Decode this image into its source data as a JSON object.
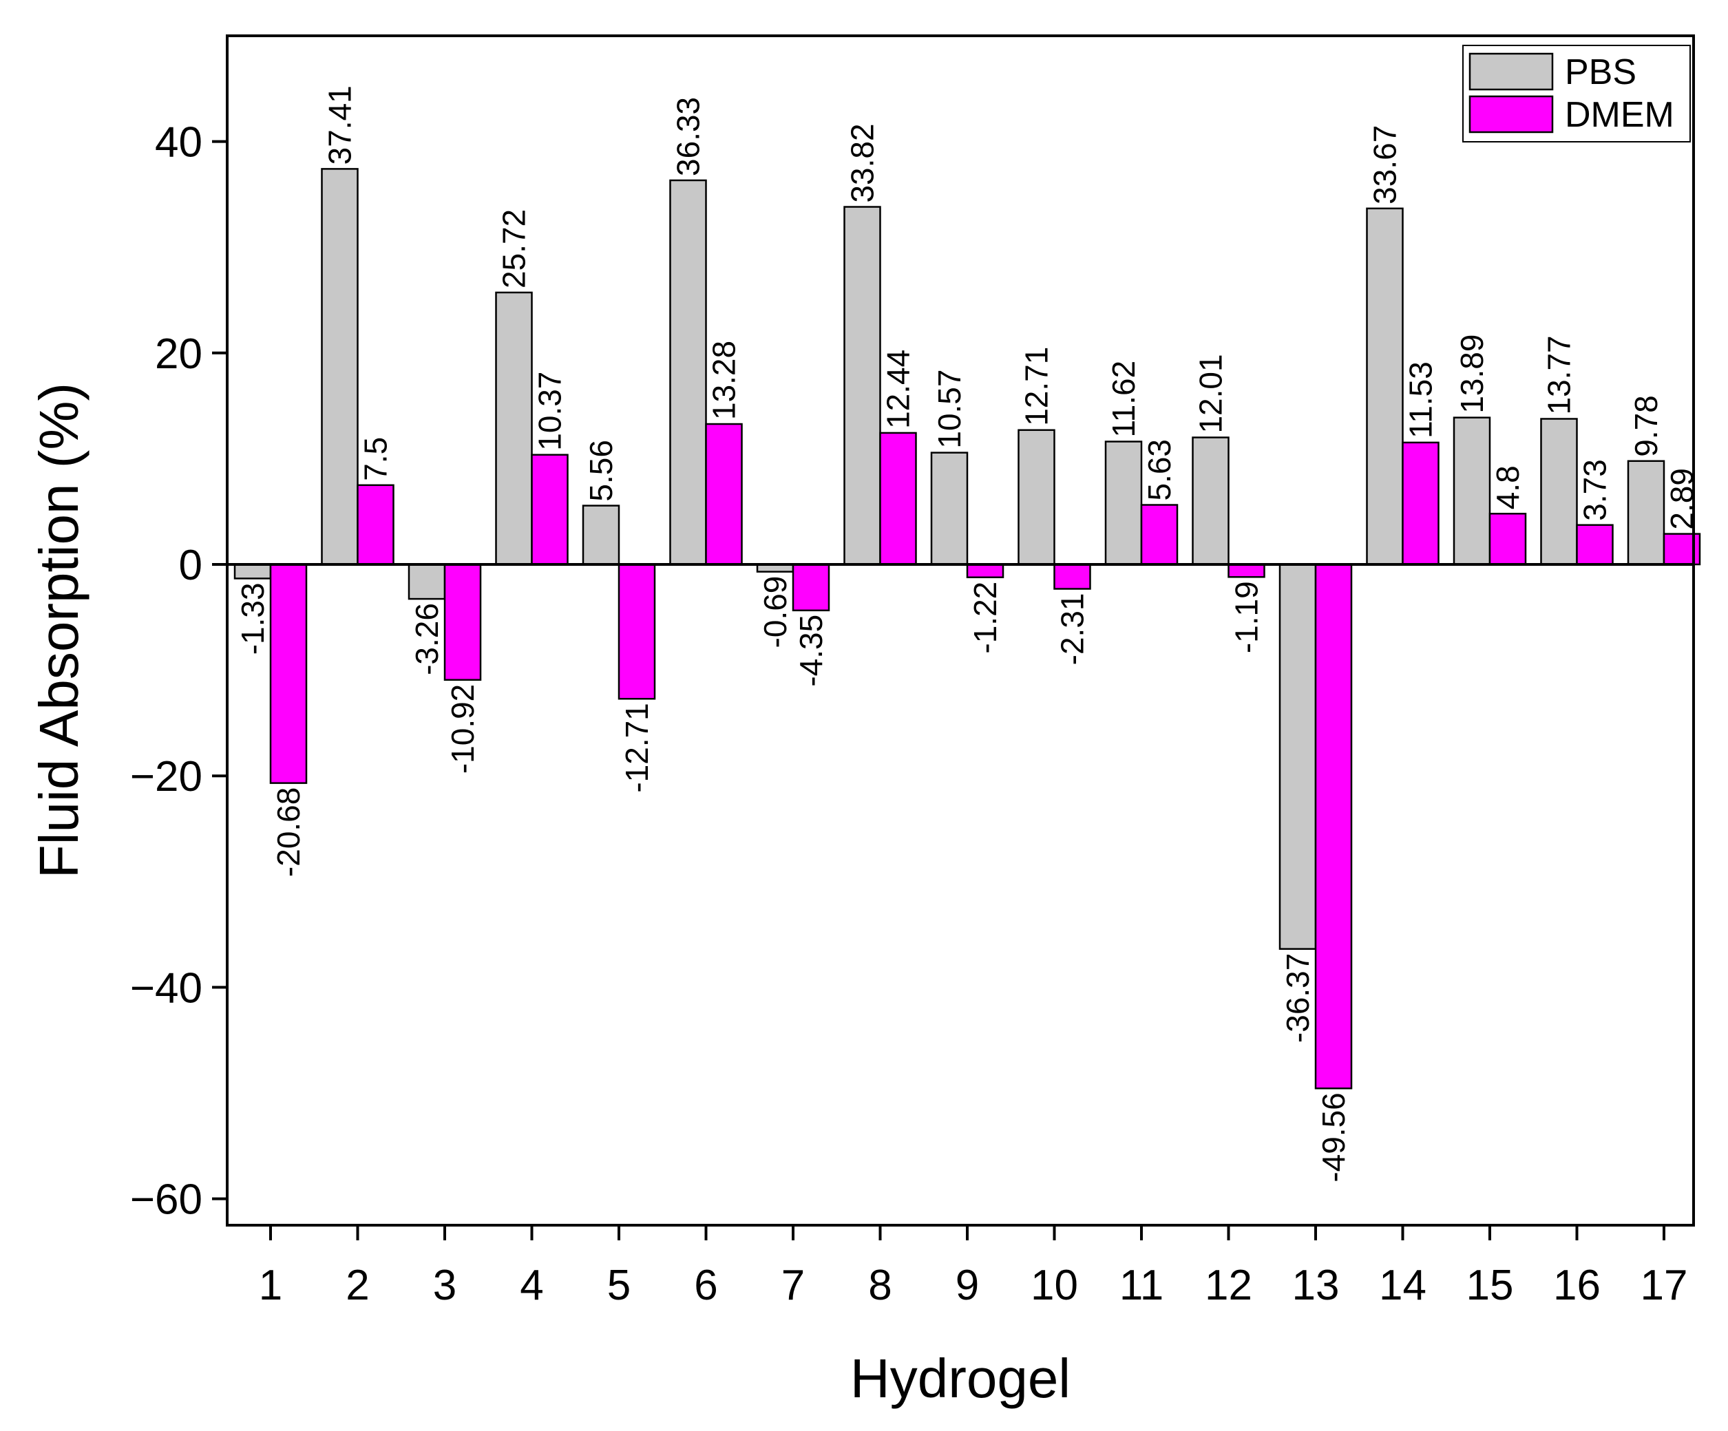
{
  "chart_data": {
    "type": "bar",
    "title": "",
    "xlabel": "Hydrogel",
    "ylabel": "Fluid Absorption (%)",
    "ylim": [
      -62.5,
      50
    ],
    "yticks": [
      -60,
      -40,
      -20,
      0,
      20,
      40
    ],
    "ytick_labels": [
      "−60",
      "−40",
      "−20",
      "0",
      "20",
      "40"
    ],
    "categories": [
      "1",
      "2",
      "3",
      "4",
      "5",
      "6",
      "7",
      "8",
      "9",
      "10",
      "11",
      "12",
      "13",
      "14",
      "15",
      "16",
      "17"
    ],
    "series": [
      {
        "name": "PBS",
        "color": "#c8c8c8",
        "values": [
          -1.33,
          37.41,
          -3.26,
          25.72,
          5.56,
          36.33,
          -0.69,
          33.82,
          10.57,
          12.71,
          11.62,
          12.01,
          -36.37,
          33.67,
          13.89,
          13.77,
          9.78
        ],
        "labels": [
          "-1.33",
          "37.41",
          "-3.26",
          "25.72",
          "5.56",
          "36.33",
          "-0.69",
          "33.82",
          "10.57",
          "12.71",
          "11.62",
          "12.01",
          "-36.37",
          "33.67",
          "13.89",
          "13.77",
          "9.78"
        ]
      },
      {
        "name": "DMEM",
        "color": "#ff00ff",
        "values": [
          -20.68,
          7.5,
          -10.92,
          10.37,
          -12.71,
          13.28,
          -4.35,
          12.44,
          -1.22,
          -2.31,
          5.63,
          -1.19,
          -49.56,
          11.53,
          4.8,
          3.73,
          2.89
        ],
        "labels": [
          "-20.68",
          "7.5",
          "-10.92",
          "10.37",
          "-12.71",
          "13.28",
          "-4.35",
          "12.44",
          "-1.22",
          "-2.31",
          "5.63",
          "-1.19",
          "-49.56",
          "11.53",
          "4.8",
          "3.73",
          "2.89"
        ]
      }
    ],
    "legend": {
      "position": "top-right",
      "entries": [
        "PBS",
        "DMEM"
      ]
    },
    "grid": false
  }
}
